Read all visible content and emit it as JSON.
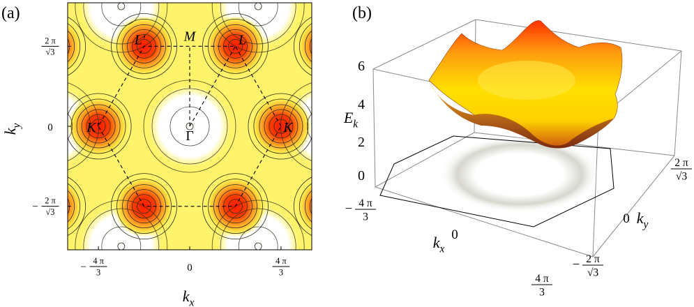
{
  "panels": {
    "a": {
      "label": "(a)"
    },
    "b": {
      "label": "(b)"
    }
  },
  "chart_data": [
    {
      "panel": "(a)",
      "type": "heatmap",
      "description": "contour",
      "title": "",
      "xlabel": {
        "main": "k",
        "sub": "x"
      },
      "ylabel": {
        "main": "k",
        "sub": "y"
      },
      "xlim": [
        -5.6,
        5.6
      ],
      "ylim": [
        -5.6,
        5.6
      ],
      "x_ticks": [
        {
          "value": -4.18879,
          "num": "4 π",
          "den": "3",
          "sign": "−"
        },
        {
          "value": 0,
          "text": "0"
        },
        {
          "value": 4.18879,
          "num": "4 π",
          "den": "3",
          "sign": ""
        }
      ],
      "y_ticks": [
        {
          "value": 3.6276,
          "num": "2 π",
          "den": "√3",
          "sign": ""
        },
        {
          "value": 0,
          "text": "0"
        },
        {
          "value": -3.6276,
          "num": "2 π",
          "den": "√3",
          "sign": "−"
        }
      ],
      "points": [
        {
          "label": "Γ",
          "x": 0,
          "y": 0
        },
        {
          "label": "K",
          "x": 4.18879,
          "y": 0
        },
        {
          "label": "K′",
          "x": -4.18879,
          "y": 0
        },
        {
          "label": "L",
          "x": 2.0944,
          "y": 3.6276
        },
        {
          "label": "L′",
          "x": -2.0944,
          "y": 3.6276
        },
        {
          "label": "M",
          "x": 0,
          "y": 3.6276
        }
      ],
      "peaks": [
        {
          "x": 4.18879,
          "y": 0
        },
        {
          "x": -4.18879,
          "y": 0
        },
        {
          "x": 2.0944,
          "y": 3.6276
        },
        {
          "x": -2.0944,
          "y": 3.6276
        },
        {
          "x": 2.0944,
          "y": -3.6276
        },
        {
          "x": -2.0944,
          "y": -3.6276
        }
      ],
      "colors": {
        "low": "#ffffff",
        "mid": "#fff36b",
        "high": "#ff2a00",
        "contour": "#2b2b1a"
      }
    },
    {
      "panel": "(b)",
      "type": "surface",
      "zlabel": {
        "main": "E",
        "sub": "k"
      },
      "xlabel": {
        "main": "k",
        "sub": "x"
      },
      "ylabel": {
        "main": "k",
        "sub": "y"
      },
      "zlim": [
        0,
        6
      ],
      "z_ticks": [
        "6",
        "4",
        "2",
        "0"
      ],
      "x_ticks": [
        {
          "num": "4 π",
          "den": "3",
          "sign": "−"
        },
        {
          "text": "0"
        },
        {
          "num": "4 π",
          "den": "3",
          "sign": ""
        }
      ],
      "y_ticks": [
        {
          "num": "2 π",
          "den": "√3",
          "sign": ""
        },
        {
          "text": "0"
        },
        {
          "num": "2 π",
          "den": "√3",
          "sign": "−"
        }
      ],
      "colors": {
        "top": "#ffd200",
        "edge": "#ff3a00",
        "shadow": "#c4c4b8"
      }
    }
  ]
}
